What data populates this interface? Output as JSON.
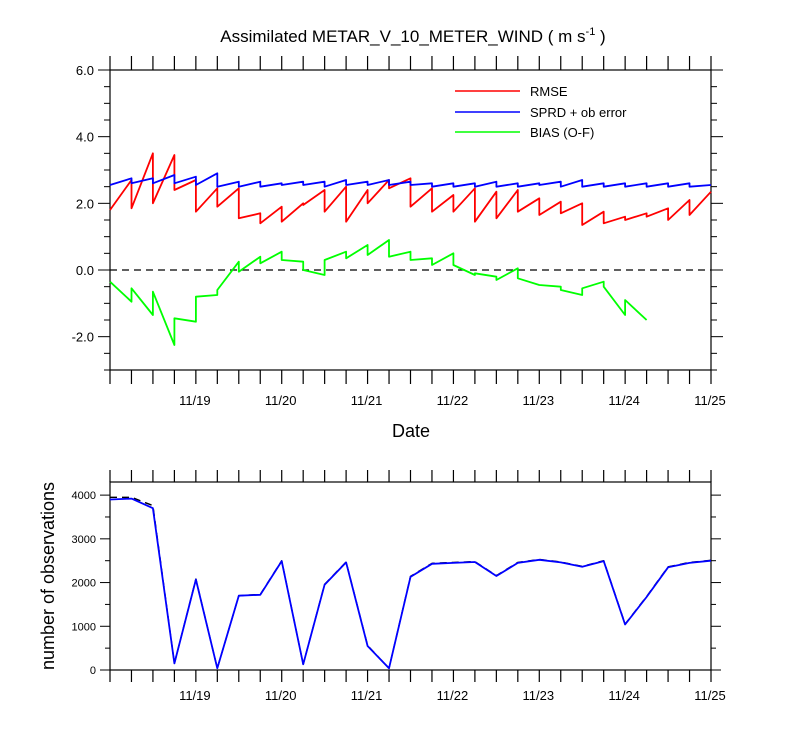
{
  "chart_data": [
    {
      "type": "line",
      "title_main": "Assimilated METAR_V_10_METER_WIND ( m s",
      "title_sup": "-1",
      "title_end": " )",
      "xlabel": "Date",
      "ylabel": "",
      "ylim": [
        -3,
        6
      ],
      "xlim": [
        18.0,
        25.0
      ],
      "yticks": [
        -2,
        0,
        2,
        4,
        6
      ],
      "ytick_labels": [
        "-2.0",
        "0.0",
        "2.0",
        "4.0",
        "6.0"
      ],
      "xticks": [
        19,
        20,
        21,
        22,
        23,
        24,
        25
      ],
      "xtick_labels": [
        "11/19",
        "11/20",
        "11/21",
        "11/22",
        "11/23",
        "11/24",
        "11/25"
      ],
      "reference_line": 0,
      "legend_position": "top-right",
      "colors": {
        "rmse": "#ff0000",
        "sprd": "#0000ff",
        "bias": "#00ff00",
        "ref": "#000000"
      },
      "series": [
        {
          "name": "RMSE",
          "color": "#ff0000",
          "points": [
            [
              18.0,
              1.8
            ],
            [
              18.25,
              2.7
            ],
            [
              18.25,
              1.85
            ],
            [
              18.5,
              3.5
            ],
            [
              18.5,
              2.0
            ],
            [
              18.75,
              3.45
            ],
            [
              18.75,
              2.4
            ],
            [
              19.0,
              2.7
            ],
            [
              19.0,
              1.75
            ],
            [
              19.25,
              2.45
            ],
            [
              19.25,
              1.9
            ],
            [
              19.5,
              2.45
            ],
            [
              19.5,
              1.55
            ],
            [
              19.75,
              1.7
            ],
            [
              19.75,
              1.4
            ],
            [
              20.0,
              1.9
            ],
            [
              20.0,
              1.45
            ],
            [
              20.25,
              2.0
            ],
            [
              20.25,
              1.95
            ],
            [
              20.5,
              2.4
            ],
            [
              20.5,
              1.75
            ],
            [
              20.75,
              2.5
            ],
            [
              20.75,
              1.45
            ],
            [
              21.0,
              2.4
            ],
            [
              21.0,
              2.0
            ],
            [
              21.25,
              2.7
            ],
            [
              21.25,
              2.45
            ],
            [
              21.5,
              2.75
            ],
            [
              21.5,
              1.9
            ],
            [
              21.75,
              2.45
            ],
            [
              21.75,
              1.75
            ],
            [
              22.0,
              2.25
            ],
            [
              22.0,
              1.75
            ],
            [
              22.25,
              2.45
            ],
            [
              22.25,
              1.45
            ],
            [
              22.5,
              2.35
            ],
            [
              22.5,
              1.55
            ],
            [
              22.75,
              2.4
            ],
            [
              22.75,
              1.75
            ],
            [
              23.0,
              2.15
            ],
            [
              23.0,
              1.65
            ],
            [
              23.25,
              2.05
            ],
            [
              23.25,
              1.7
            ],
            [
              23.5,
              2.0
            ],
            [
              23.5,
              1.35
            ],
            [
              23.75,
              1.75
            ],
            [
              23.75,
              1.4
            ],
            [
              24.0,
              1.6
            ],
            [
              24.0,
              1.5
            ],
            [
              24.25,
              1.7
            ],
            [
              24.25,
              1.6
            ],
            [
              24.5,
              1.85
            ],
            [
              24.5,
              1.5
            ],
            [
              24.75,
              2.1
            ],
            [
              24.75,
              1.65
            ],
            [
              25.0,
              2.35
            ]
          ]
        },
        {
          "name": "SPRD + ob error",
          "color": "#0000ff",
          "points": [
            [
              18.0,
              2.55
            ],
            [
              18.25,
              2.75
            ],
            [
              18.25,
              2.6
            ],
            [
              18.5,
              2.75
            ],
            [
              18.5,
              2.6
            ],
            [
              18.75,
              2.85
            ],
            [
              18.75,
              2.6
            ],
            [
              19.0,
              2.8
            ],
            [
              19.0,
              2.55
            ],
            [
              19.25,
              2.9
            ],
            [
              19.25,
              2.5
            ],
            [
              19.5,
              2.65
            ],
            [
              19.5,
              2.5
            ],
            [
              19.75,
              2.65
            ],
            [
              19.75,
              2.5
            ],
            [
              20.0,
              2.6
            ],
            [
              20.0,
              2.55
            ],
            [
              20.25,
              2.65
            ],
            [
              20.25,
              2.55
            ],
            [
              20.5,
              2.65
            ],
            [
              20.5,
              2.5
            ],
            [
              20.75,
              2.7
            ],
            [
              20.75,
              2.55
            ],
            [
              21.0,
              2.65
            ],
            [
              21.0,
              2.55
            ],
            [
              21.25,
              2.7
            ],
            [
              21.25,
              2.55
            ],
            [
              21.5,
              2.65
            ],
            [
              21.5,
              2.55
            ],
            [
              21.75,
              2.6
            ],
            [
              21.75,
              2.5
            ],
            [
              22.0,
              2.6
            ],
            [
              22.0,
              2.5
            ],
            [
              22.25,
              2.6
            ],
            [
              22.25,
              2.5
            ],
            [
              22.5,
              2.65
            ],
            [
              22.5,
              2.5
            ],
            [
              22.75,
              2.6
            ],
            [
              22.75,
              2.5
            ],
            [
              23.0,
              2.6
            ],
            [
              23.0,
              2.55
            ],
            [
              23.25,
              2.65
            ],
            [
              23.25,
              2.5
            ],
            [
              23.5,
              2.7
            ],
            [
              23.5,
              2.5
            ],
            [
              23.75,
              2.6
            ],
            [
              23.75,
              2.5
            ],
            [
              24.0,
              2.6
            ],
            [
              24.0,
              2.5
            ],
            [
              24.25,
              2.6
            ],
            [
              24.25,
              2.5
            ],
            [
              24.5,
              2.6
            ],
            [
              24.5,
              2.5
            ],
            [
              24.75,
              2.6
            ],
            [
              24.75,
              2.5
            ],
            [
              25.0,
              2.55
            ]
          ]
        },
        {
          "name": "BIAS (O-F)",
          "color": "#00ff00",
          "points": [
            [
              18.0,
              -0.35
            ],
            [
              18.25,
              -0.95
            ],
            [
              18.25,
              -0.55
            ],
            [
              18.5,
              -1.35
            ],
            [
              18.5,
              -0.65
            ],
            [
              18.75,
              -2.25
            ],
            [
              18.75,
              -1.45
            ],
            [
              19.0,
              -1.55
            ],
            [
              19.0,
              -0.8
            ],
            [
              19.25,
              -0.75
            ],
            [
              19.25,
              -0.6
            ],
            [
              19.5,
              0.25
            ],
            [
              19.5,
              -0.05
            ],
            [
              19.75,
              0.4
            ],
            [
              19.75,
              0.2
            ],
            [
              20.0,
              0.55
            ],
            [
              20.0,
              0.3
            ],
            [
              20.25,
              0.25
            ],
            [
              20.25,
              0.0
            ],
            [
              20.5,
              -0.15
            ],
            [
              20.5,
              0.3
            ],
            [
              20.75,
              0.55
            ],
            [
              20.75,
              0.35
            ],
            [
              21.0,
              0.75
            ],
            [
              21.0,
              0.45
            ],
            [
              21.25,
              0.9
            ],
            [
              21.25,
              0.4
            ],
            [
              21.5,
              0.55
            ],
            [
              21.5,
              0.3
            ],
            [
              21.75,
              0.35
            ],
            [
              21.75,
              0.15
            ],
            [
              22.0,
              0.5
            ],
            [
              22.0,
              0.15
            ],
            [
              22.25,
              -0.15
            ],
            [
              22.25,
              -0.1
            ],
            [
              22.5,
              -0.2
            ],
            [
              22.5,
              -0.3
            ],
            [
              22.75,
              0.05
            ],
            [
              22.75,
              -0.25
            ],
            [
              23.0,
              -0.45
            ],
            [
              23.25,
              -0.5
            ],
            [
              23.25,
              -0.6
            ],
            [
              23.5,
              -0.75
            ],
            [
              23.5,
              -0.55
            ],
            [
              23.75,
              -0.35
            ],
            [
              23.75,
              -0.5
            ],
            [
              24.0,
              -1.35
            ],
            [
              24.0,
              -0.9
            ],
            [
              24.25,
              -1.5
            ]
          ]
        }
      ]
    },
    {
      "type": "line",
      "title": "",
      "xlabel": "",
      "ylabel": "number of observations",
      "ylim": [
        0,
        4300
      ],
      "xlim": [
        18.0,
        25.0
      ],
      "yticks": [
        0,
        1000,
        2000,
        3000,
        4000
      ],
      "ytick_labels": [
        "0",
        "1000",
        "2000",
        "3000",
        "4000"
      ],
      "xticks": [
        19,
        20,
        21,
        22,
        23,
        24,
        25
      ],
      "xtick_labels": [
        "11/19",
        "11/20",
        "11/21",
        "11/22",
        "11/23",
        "11/24",
        "11/25"
      ],
      "colors": {
        "possible": "#000000",
        "assimilated": "#0000ff"
      },
      "series": [
        {
          "style": "dashed",
          "color": "#000000",
          "x": [
            18.0,
            18.25,
            18.5,
            18.75,
            19.0,
            19.25,
            19.5,
            19.75,
            20.0,
            20.25,
            20.5,
            20.75,
            21.0,
            21.25,
            21.5,
            21.75,
            22.0,
            22.25,
            22.5,
            22.75,
            23.0,
            23.25,
            23.5,
            23.75,
            24.0,
            24.25,
            24.5,
            24.75,
            25.0
          ],
          "values": [
            3950,
            3950,
            3760,
            150,
            2080,
            40,
            1700,
            1730,
            2500,
            130,
            1960,
            2470,
            560,
            40,
            2140,
            2440,
            2460,
            2480,
            2160,
            2460,
            2530,
            2470,
            2370,
            2500,
            1050,
            1680,
            2360,
            2460,
            2510
          ]
        },
        {
          "style": "solid",
          "color": "#0000ff",
          "x": [
            18.0,
            18.25,
            18.5,
            18.75,
            19.0,
            19.25,
            19.5,
            19.75,
            20.0,
            20.25,
            20.5,
            20.75,
            21.0,
            21.25,
            21.5,
            21.75,
            22.0,
            22.25,
            22.5,
            22.75,
            23.0,
            23.25,
            23.5,
            23.75,
            24.0,
            24.25,
            24.5,
            24.75,
            25.0
          ],
          "values": [
            3900,
            3920,
            3700,
            150,
            2070,
            40,
            1700,
            1720,
            2490,
            130,
            1950,
            2460,
            550,
            40,
            2130,
            2430,
            2450,
            2470,
            2150,
            2450,
            2520,
            2460,
            2360,
            2490,
            1040,
            1670,
            2350,
            2450,
            2500
          ]
        }
      ]
    }
  ]
}
